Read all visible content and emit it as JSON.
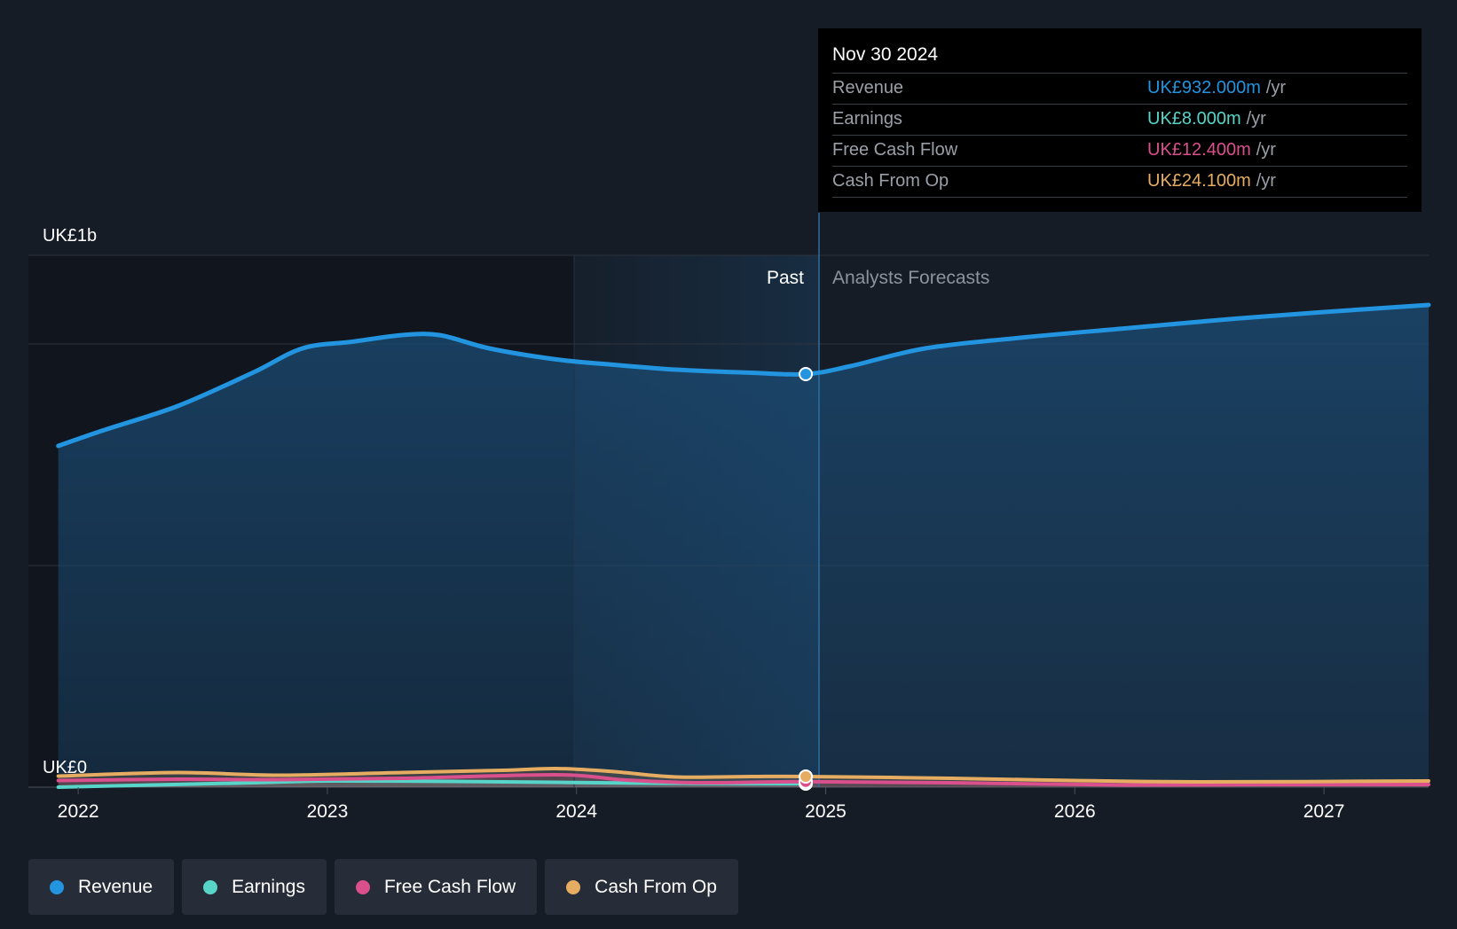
{
  "chart_data": {
    "type": "area",
    "y_axis": {
      "labels": [
        "UK£1b",
        "UK£0"
      ],
      "ylim": [
        0,
        1200
      ]
    },
    "x_axis": {
      "range": [
        2021.8,
        2027.42
      ],
      "ticks": [
        "2022",
        "2023",
        "2024",
        "2025",
        "2026",
        "2027"
      ]
    },
    "divider": {
      "x": 2024.92,
      "past_label": "Past",
      "forecast_label": "Analysts Forecasts"
    },
    "series": [
      {
        "name": "Revenue",
        "color": "#2394df",
        "points": [
          [
            2021.92,
            770
          ],
          [
            2022.1,
            805
          ],
          [
            2022.4,
            860
          ],
          [
            2022.7,
            935
          ],
          [
            2022.9,
            990
          ],
          [
            2023.1,
            1005
          ],
          [
            2023.3,
            1020
          ],
          [
            2023.45,
            1020
          ],
          [
            2023.65,
            990
          ],
          [
            2023.92,
            965
          ],
          [
            2024.15,
            953
          ],
          [
            2024.4,
            942
          ],
          [
            2024.7,
            935
          ],
          [
            2024.92,
            932
          ],
          [
            2025.1,
            950
          ],
          [
            2025.4,
            990
          ],
          [
            2025.8,
            1015
          ],
          [
            2026.2,
            1035
          ],
          [
            2026.6,
            1055
          ],
          [
            2027.0,
            1072
          ],
          [
            2027.42,
            1088
          ]
        ]
      },
      {
        "name": "Earnings",
        "color": "#58d5c9",
        "points": [
          [
            2021.92,
            0
          ],
          [
            2022.3,
            5
          ],
          [
            2022.7,
            10
          ],
          [
            2023.0,
            14
          ],
          [
            2023.5,
            13
          ],
          [
            2023.92,
            11
          ],
          [
            2024.3,
            9
          ],
          [
            2024.7,
            8
          ],
          [
            2024.92,
            8
          ]
        ]
      },
      {
        "name": "Free Cash Flow",
        "color": "#d9508d",
        "points": [
          [
            2021.92,
            15
          ],
          [
            2022.4,
            18
          ],
          [
            2022.8,
            17
          ],
          [
            2023.3,
            20
          ],
          [
            2023.92,
            28
          ],
          [
            2024.2,
            16
          ],
          [
            2024.5,
            10
          ],
          [
            2024.92,
            12.4
          ],
          [
            2025.5,
            10
          ],
          [
            2026.2,
            5
          ],
          [
            2026.8,
            6
          ],
          [
            2027.42,
            6
          ]
        ]
      },
      {
        "name": "Cash From Op",
        "color": "#e6ad62",
        "points": [
          [
            2021.92,
            25
          ],
          [
            2022.4,
            33
          ],
          [
            2022.8,
            27
          ],
          [
            2023.3,
            33
          ],
          [
            2023.7,
            38
          ],
          [
            2023.92,
            42
          ],
          [
            2024.15,
            35
          ],
          [
            2024.4,
            23
          ],
          [
            2024.7,
            24
          ],
          [
            2024.92,
            24.1
          ],
          [
            2025.5,
            20
          ],
          [
            2026.0,
            15
          ],
          [
            2026.5,
            12
          ],
          [
            2027.42,
            14
          ]
        ]
      }
    ]
  },
  "tooltip": {
    "date": "Nov 30 2024",
    "unit": "/yr",
    "rows": [
      {
        "label": "Revenue",
        "value": "UK£932.000m",
        "color": "#2394df"
      },
      {
        "label": "Earnings",
        "value": "UK£8.000m",
        "color": "#58d5c9"
      },
      {
        "label": "Free Cash Flow",
        "value": "UK£12.400m",
        "color": "#d9508d"
      },
      {
        "label": "Cash From Op",
        "value": "UK£24.100m",
        "color": "#e6ad62"
      }
    ]
  },
  "legend": [
    {
      "label": "Revenue",
      "color": "#2394df"
    },
    {
      "label": "Earnings",
      "color": "#58d5c9"
    },
    {
      "label": "Free Cash Flow",
      "color": "#d9508d"
    },
    {
      "label": "Cash From Op",
      "color": "#e6ad62"
    }
  ]
}
